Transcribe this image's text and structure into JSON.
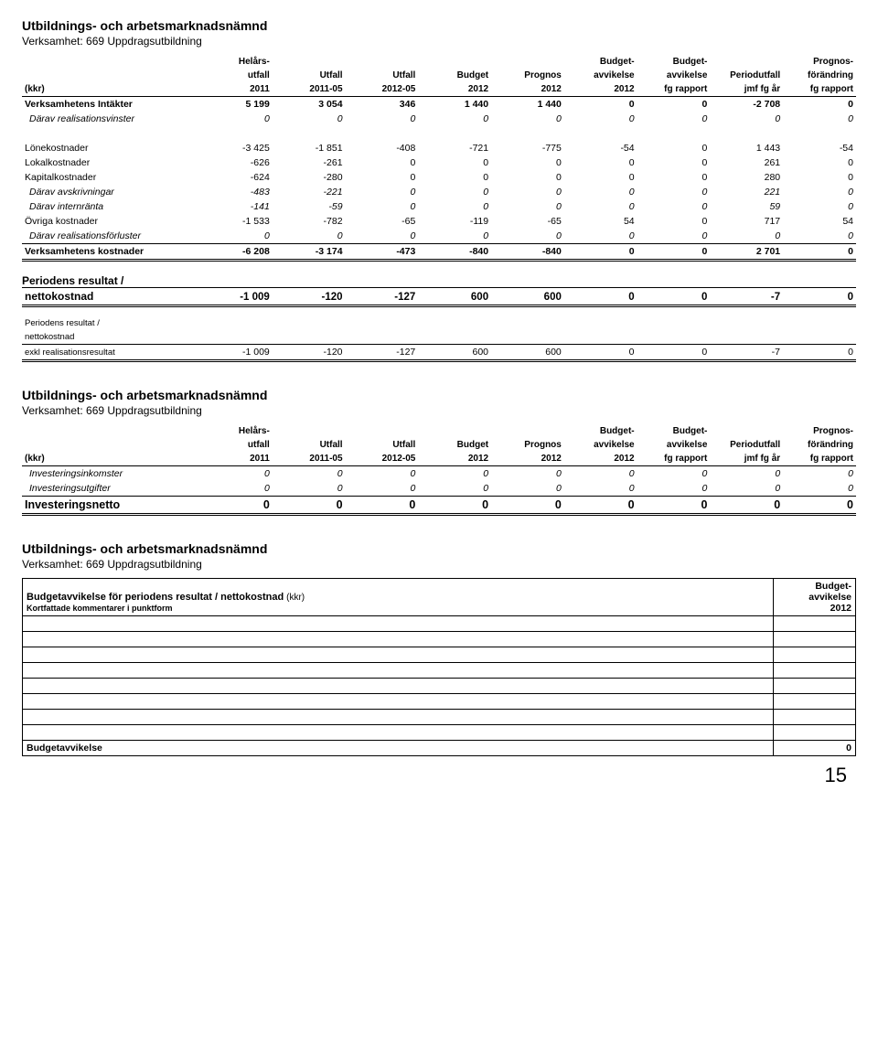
{
  "page_number": "15",
  "org_title": "Utbildnings- och arbetsmarknadsnämnd",
  "activity_line": "Verksamhet: 669 Uppdragsutbildning",
  "headers": {
    "kkr": "(kkr)",
    "c1a": "Helårs-",
    "c1b": "utfall",
    "c1c": "2011",
    "c2a": "Utfall",
    "c2b": "2011-05",
    "c3a": "Utfall",
    "c3b": "2012-05",
    "c4a": "Budget",
    "c4b": "2012",
    "c5a": "Prognos",
    "c5b": "2012",
    "c6a": "Budget-",
    "c6b": "avvikelse",
    "c6c": "2012",
    "c7a": "Budget-",
    "c7b": "avvikelse",
    "c7c": "fg rapport",
    "c8a": "Periodutfall",
    "c8b": "jmf fg år",
    "c9a": "Prognos-",
    "c9b": "förändring",
    "c9c": "fg rapport"
  },
  "rows_main": [
    {
      "label": "Verksamhetens Intäkter",
      "v": [
        "5 199",
        "3 054",
        "346",
        "1 440",
        "1 440",
        "0",
        "0",
        "-2 708",
        "0"
      ],
      "bold": true
    },
    {
      "label": "Därav realisationsvinster",
      "v": [
        "0",
        "0",
        "0",
        "0",
        "0",
        "0",
        "0",
        "0",
        "0"
      ],
      "italic": true
    },
    {
      "gap": true
    },
    {
      "label": "Lönekostnader",
      "v": [
        "-3 425",
        "-1 851",
        "-408",
        "-721",
        "-775",
        "-54",
        "0",
        "1 443",
        "-54"
      ]
    },
    {
      "label": "Lokalkostnader",
      "v": [
        "-626",
        "-261",
        "0",
        "0",
        "0",
        "0",
        "0",
        "261",
        "0"
      ]
    },
    {
      "label": "Kapitalkostnader",
      "v": [
        "-624",
        "-280",
        "0",
        "0",
        "0",
        "0",
        "0",
        "280",
        "0"
      ]
    },
    {
      "label": "Därav avskrivningar",
      "v": [
        "-483",
        "-221",
        "0",
        "0",
        "0",
        "0",
        "0",
        "221",
        "0"
      ],
      "italic": true
    },
    {
      "label": "Därav internränta",
      "v": [
        "-141",
        "-59",
        "0",
        "0",
        "0",
        "0",
        "0",
        "59",
        "0"
      ],
      "italic": true
    },
    {
      "label": "Övriga kostnader",
      "v": [
        "-1 533",
        "-782",
        "-65",
        "-119",
        "-65",
        "54",
        "0",
        "717",
        "54"
      ]
    },
    {
      "label": "Därav realisationsförluster",
      "v": [
        "0",
        "0",
        "0",
        "0",
        "0",
        "0",
        "0",
        "0",
        "0"
      ],
      "italic": true
    },
    {
      "label": "Verksamhetens kostnader",
      "v": [
        "-6 208",
        "-3 174",
        "-473",
        "-840",
        "-840",
        "0",
        "0",
        "2 701",
        "0"
      ],
      "bold": true,
      "topline": true
    }
  ],
  "period_result": {
    "title_a": "Periodens resultat /",
    "title_b": "nettokostnad",
    "v": [
      "-1 009",
      "-120",
      "-127",
      "600",
      "600",
      "0",
      "0",
      "-7",
      "0"
    ]
  },
  "period_excl": {
    "l1": "Periodens resultat /",
    "l2": "nettokostnad",
    "l3": "exkl realisationsresultat",
    "v": [
      "-1 009",
      "-120",
      "-127",
      "600",
      "600",
      "0",
      "0",
      "-7",
      "0"
    ]
  },
  "rows_invest": [
    {
      "label": "Investeringsinkomster",
      "v": [
        "0",
        "0",
        "0",
        "0",
        "0",
        "0",
        "0",
        "0",
        "0"
      ],
      "italic": true
    },
    {
      "label": "Investeringsutgifter",
      "v": [
        "0",
        "0",
        "0",
        "0",
        "0",
        "0",
        "0",
        "0",
        "0"
      ],
      "italic": true
    },
    {
      "label": "Investeringsnetto",
      "v": [
        "0",
        "0",
        "0",
        "0",
        "0",
        "0",
        "0",
        "0",
        "0"
      ],
      "bold": true,
      "big": true,
      "topline": true
    }
  ],
  "deviation": {
    "title": "Budgetavvikelse för periodens resultat / nettokostnad",
    "title_unit": "(kkr)",
    "sub": "Kortfattade kommentarer i punktform",
    "col_a": "Budget-",
    "col_b": "avvikelse",
    "col_c": "2012",
    "footer_label": "Budgetavvikelse",
    "footer_value": "0",
    "blank_rows": 8
  }
}
